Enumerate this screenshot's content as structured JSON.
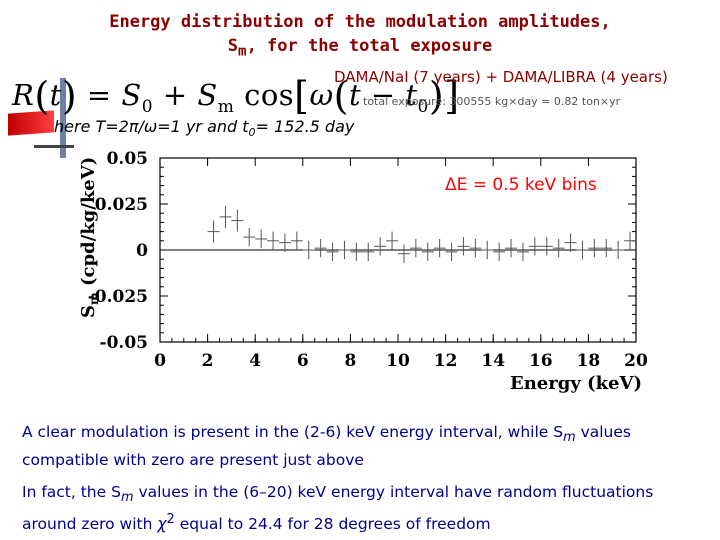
{
  "slide": {
    "title_line1": "Energy distribution of the modulation amplitudes,",
    "title_line2_pre": "S",
    "title_line2_sub": "m",
    "title_line2_post": ", for the total exposure",
    "formula": {
      "R": "R",
      "t": "t",
      "eq": " = ",
      "S0": "S",
      "S0sub": "0",
      "plus": " + ",
      "Sm": "S",
      "Smsub": "m",
      "cos": " cos",
      "omega": "ω",
      "t0": "t",
      "t0sub": "0"
    },
    "dama_label": "DAMA/NaI (7 years) + DAMA/LIBRA (4 years)",
    "exposure_label": "total exposure: 300555 kg×day = 0.82 ton×yr",
    "here_pre": "here T=2π/ω=1 yr and t",
    "here_sub": "0",
    "here_post": "= 152.5 day",
    "caption1_pre": "A clear modulation is present in the (2-6) keV energy interval, while S",
    "caption1_sub": "m",
    "caption1_post": " values compatible with zero are present just above",
    "caption2_pre": "In fact, the S",
    "caption2_sub": "m",
    "caption2_mid": " values in the (6–20) keV energy interval have random fluctuations around zero with ",
    "caption2_chi": "χ",
    "caption2_sup": "2",
    "caption2_post": " equal to 24.4 for 28 degrees of freedom",
    "colors": {
      "title": "#8b0000",
      "caption": "#00008b",
      "annotation": "#ff0000",
      "data": "#555555"
    }
  },
  "chart_data": {
    "type": "scatter",
    "xlabel": "Energy (keV)",
    "ylabel_pre": "S",
    "ylabel_sub": "m",
    "ylabel_post": " (cpd/kg/keV)",
    "xlim": [
      0,
      20
    ],
    "ylim": [
      -0.05,
      0.05
    ],
    "xticks": [
      "0",
      "2",
      "4",
      "6",
      "8",
      "10",
      "12",
      "14",
      "16",
      "18",
      "20"
    ],
    "yticks": [
      "0.05",
      "0.025",
      "0",
      "-0.025",
      "-0.05"
    ],
    "annotation": "ΔE = 0.5 keV bins",
    "points": [
      {
        "x": 2.25,
        "y": 0.01,
        "err": 0.006
      },
      {
        "x": 2.75,
        "y": 0.018,
        "err": 0.006
      },
      {
        "x": 3.25,
        "y": 0.016,
        "err": 0.006
      },
      {
        "x": 3.75,
        "y": 0.007,
        "err": 0.005
      },
      {
        "x": 4.25,
        "y": 0.006,
        "err": 0.005
      },
      {
        "x": 4.75,
        "y": 0.005,
        "err": 0.005
      },
      {
        "x": 5.25,
        "y": 0.004,
        "err": 0.005
      },
      {
        "x": 5.75,
        "y": 0.005,
        "err": 0.005
      },
      {
        "x": 6.25,
        "y": 0.0,
        "err": 0.005
      },
      {
        "x": 6.75,
        "y": 0.001,
        "err": 0.005
      },
      {
        "x": 7.25,
        "y": -0.001,
        "err": 0.005
      },
      {
        "x": 7.75,
        "y": 0.0,
        "err": 0.005
      },
      {
        "x": 8.25,
        "y": -0.001,
        "err": 0.005
      },
      {
        "x": 8.75,
        "y": -0.001,
        "err": 0.005
      },
      {
        "x": 9.25,
        "y": 0.002,
        "err": 0.005
      },
      {
        "x": 9.75,
        "y": 0.005,
        "err": 0.005
      },
      {
        "x": 10.25,
        "y": -0.002,
        "err": 0.005
      },
      {
        "x": 10.75,
        "y": 0.001,
        "err": 0.005
      },
      {
        "x": 11.25,
        "y": -0.001,
        "err": 0.005
      },
      {
        "x": 11.75,
        "y": 0.001,
        "err": 0.005
      },
      {
        "x": 12.25,
        "y": -0.001,
        "err": 0.005
      },
      {
        "x": 12.75,
        "y": 0.002,
        "err": 0.005
      },
      {
        "x": 13.25,
        "y": 0.001,
        "err": 0.005
      },
      {
        "x": 13.75,
        "y": 0.0,
        "err": 0.005
      },
      {
        "x": 14.25,
        "y": -0.001,
        "err": 0.005
      },
      {
        "x": 14.75,
        "y": 0.001,
        "err": 0.005
      },
      {
        "x": 15.25,
        "y": -0.001,
        "err": 0.005
      },
      {
        "x": 15.75,
        "y": 0.002,
        "err": 0.005
      },
      {
        "x": 16.25,
        "y": 0.002,
        "err": 0.005
      },
      {
        "x": 16.75,
        "y": 0.001,
        "err": 0.005
      },
      {
        "x": 17.25,
        "y": 0.004,
        "err": 0.005
      },
      {
        "x": 17.75,
        "y": 0.0,
        "err": 0.005
      },
      {
        "x": 18.25,
        "y": 0.001,
        "err": 0.005
      },
      {
        "x": 18.75,
        "y": 0.001,
        "err": 0.005
      },
      {
        "x": 19.25,
        "y": 0.0,
        "err": 0.005
      },
      {
        "x": 19.75,
        "y": 0.005,
        "err": 0.005
      }
    ]
  }
}
